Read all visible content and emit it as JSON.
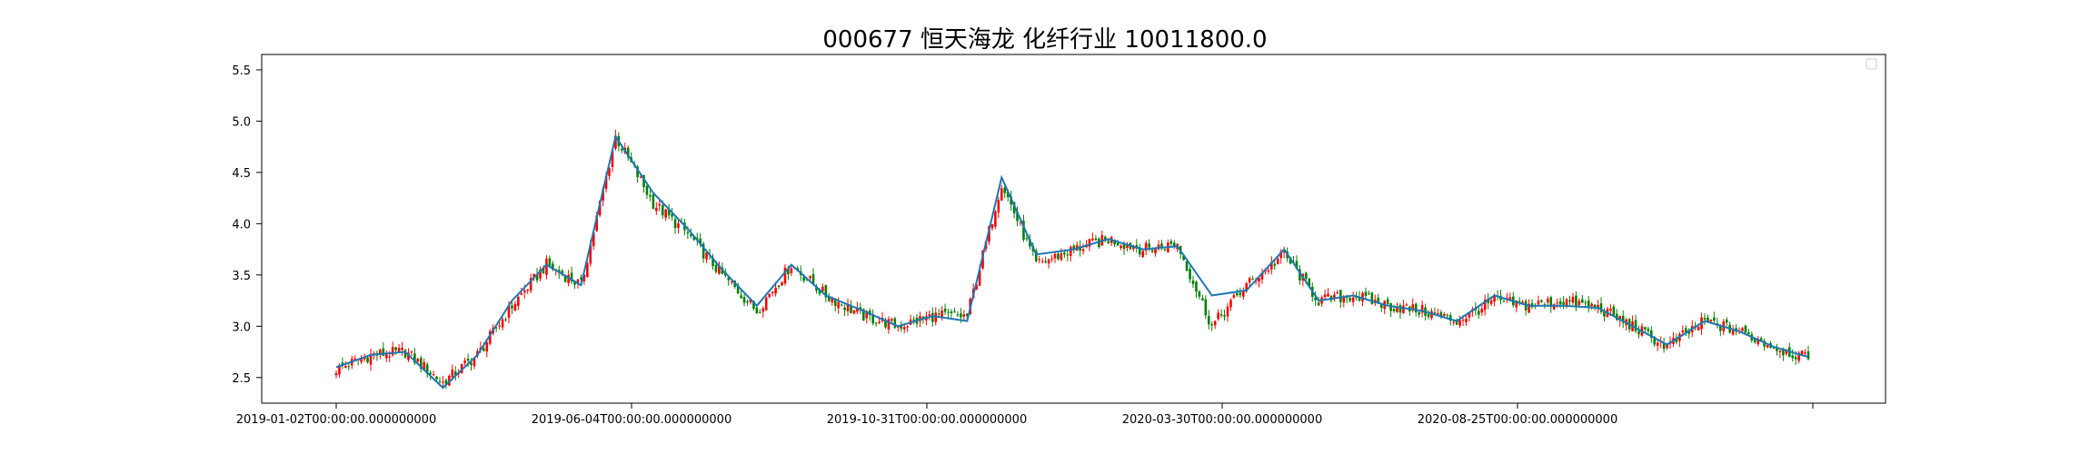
{
  "chart_data": {
    "type": "candlestick",
    "title": "000677 恒天海龙 化纤行业 10011800.0",
    "xlabel": "",
    "ylabel": "",
    "ylim": [
      2.25,
      5.65
    ],
    "y_ticks": [
      2.5,
      3.0,
      3.5,
      4.0,
      4.5,
      5.0,
      5.5
    ],
    "y_tick_labels": [
      "2.5",
      "3.0",
      "3.5",
      "4.0",
      "4.5",
      "5.0",
      "5.5"
    ],
    "x_tick_labels": [
      "2019-01-02T00:00:00.000000000",
      "2019-06-04T00:00:00.000000000",
      "2019-10-31T00:00:00.000000000",
      "2020-03-30T00:00:00.000000000",
      "2020-08-25T00:00:00.000000000",
      ""
    ],
    "colors": {
      "up": "#ff0000",
      "down": "#008000",
      "ma_line": "#1f77b4"
    },
    "grid": false,
    "legend": "top-right (empty)",
    "series": [
      {
        "name": "close",
        "dates": [
          "2019-01-02",
          "2019-01-22",
          "2019-02-20",
          "2019-03-12",
          "2019-03-29",
          "2019-04-12",
          "2019-04-26",
          "2019-05-15",
          "2019-06-04",
          "2019-06-18",
          "2019-07-02",
          "2019-07-16",
          "2019-08-01",
          "2019-08-15",
          "2019-09-02",
          "2019-09-20",
          "2019-10-15",
          "2019-10-31",
          "2019-11-08",
          "2019-11-20",
          "2019-12-05",
          "2019-12-20",
          "2020-01-10",
          "2020-02-05",
          "2020-02-20",
          "2020-03-10",
          "2020-03-30",
          "2020-04-15",
          "2020-05-06",
          "2020-05-25",
          "2020-06-15",
          "2020-07-01",
          "2020-07-20",
          "2020-08-05",
          "2020-08-25",
          "2020-09-15",
          "2020-10-15",
          "2020-11-05",
          "2020-11-20",
          "2020-12-10",
          "2020-12-25",
          "2021-01-15",
          "2021-01-29"
        ],
        "values": [
          2.58,
          2.72,
          2.75,
          2.45,
          2.72,
          3.2,
          3.6,
          3.4,
          4.85,
          4.2,
          3.9,
          3.5,
          3.15,
          3.6,
          3.3,
          3.1,
          3.0,
          3.1,
          3.1,
          4.4,
          3.6,
          3.75,
          3.85,
          3.75,
          3.8,
          3.0,
          3.4,
          3.7,
          3.25,
          3.3,
          3.2,
          3.15,
          3.05,
          3.25,
          3.2,
          3.25,
          3.18,
          3.0,
          2.8,
          3.05,
          2.95,
          2.8,
          2.68
        ]
      },
      {
        "name": "ma",
        "values": [
          2.6,
          2.72,
          2.75,
          2.4,
          2.72,
          3.25,
          3.6,
          3.4,
          4.85,
          4.3,
          3.95,
          3.55,
          3.2,
          3.6,
          3.3,
          3.15,
          3.0,
          3.1,
          3.05,
          4.45,
          3.7,
          3.75,
          3.85,
          3.75,
          3.78,
          3.3,
          3.35,
          3.75,
          3.25,
          3.3,
          3.2,
          3.15,
          3.05,
          3.3,
          3.2,
          3.2,
          3.18,
          3.0,
          2.82,
          3.05,
          2.95,
          2.8,
          2.7
        ]
      }
    ]
  }
}
